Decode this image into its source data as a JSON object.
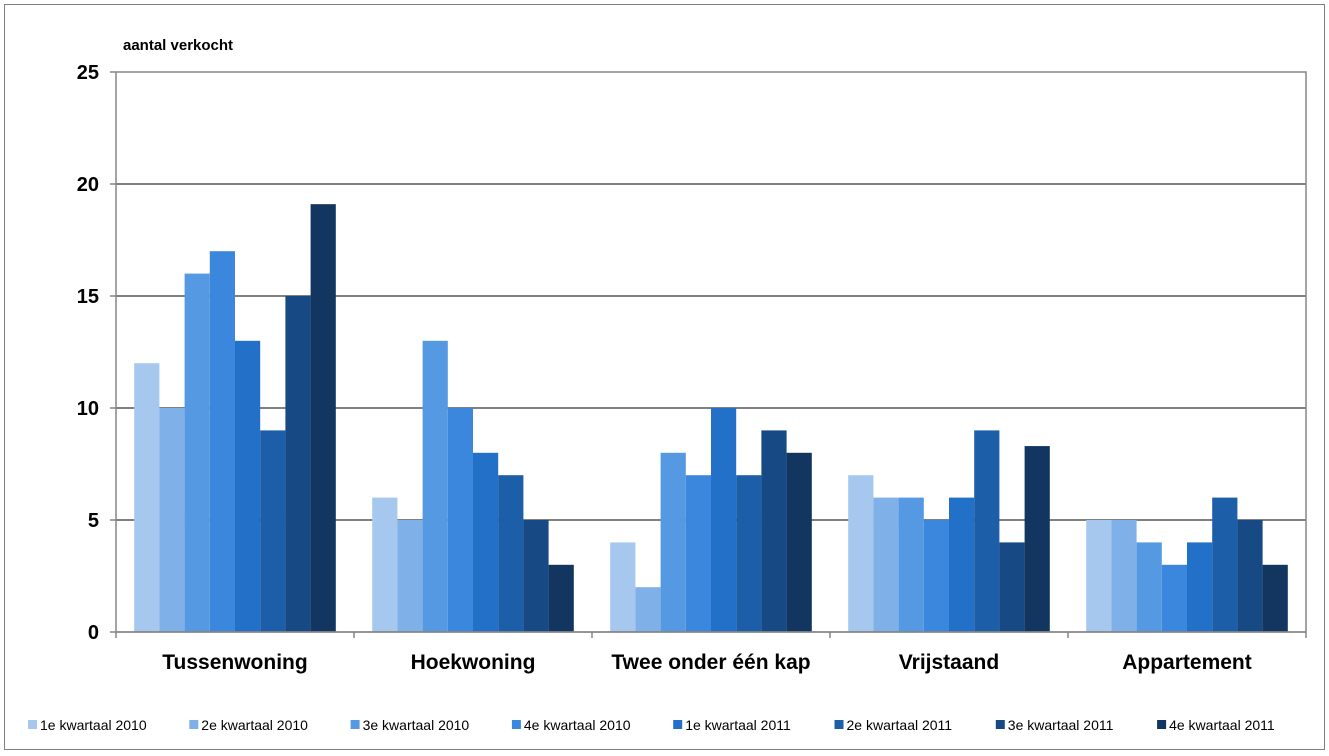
{
  "chart_data": {
    "type": "bar",
    "ylabel": "aantal verkocht",
    "ylim": [
      0,
      25
    ],
    "yticks": [
      0,
      5,
      10,
      15,
      20,
      25
    ],
    "grid": "horizontal",
    "legend_position": "bottom",
    "categories": [
      "Tussenwoning",
      "Hoekwoning",
      "Twee onder één kap",
      "Vrijstaand",
      "Appartement"
    ],
    "series": [
      {
        "name": "1e kwartaal 2010",
        "color": "#a6c8ef",
        "values": [
          12,
          6,
          4,
          7,
          5
        ]
      },
      {
        "name": "2e kwartaal 2010",
        "color": "#7fb0e8",
        "values": [
          10,
          5,
          2,
          6,
          5
        ]
      },
      {
        "name": "3e kwartaal 2010",
        "color": "#5599e2",
        "values": [
          16,
          13,
          8,
          6,
          4
        ]
      },
      {
        "name": "4e kwartaal 2010",
        "color": "#3b87dd",
        "values": [
          17,
          10,
          7,
          5,
          3
        ]
      },
      {
        "name": "1e kwartaal 2011",
        "color": "#2370c8",
        "values": [
          13,
          8,
          10,
          6,
          4
        ]
      },
      {
        "name": "2e kwartaal 2011",
        "color": "#1c5ea8",
        "values": [
          9,
          7,
          7,
          9,
          6
        ]
      },
      {
        "name": "3e kwartaal 2011",
        "color": "#174a85",
        "values": [
          15,
          5,
          9,
          4,
          5
        ]
      },
      {
        "name": "4e kwartaal 2011",
        "color": "#12365f",
        "values": [
          19.1,
          3,
          8,
          8.3,
          3
        ]
      }
    ]
  }
}
